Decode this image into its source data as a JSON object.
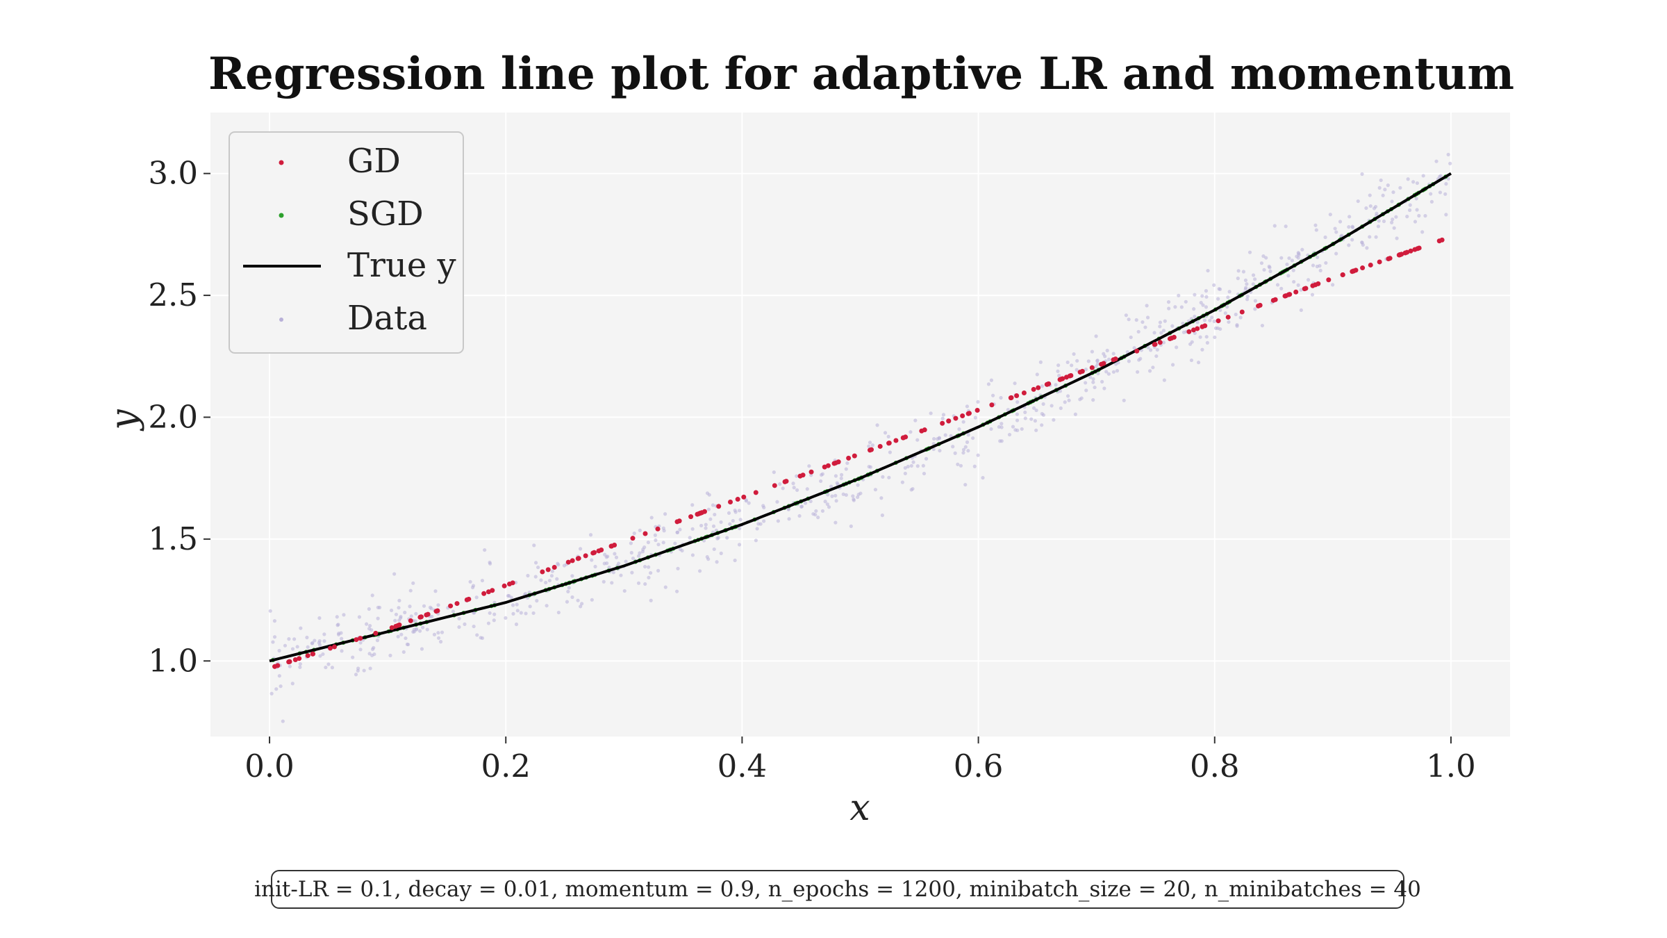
{
  "chart_data": {
    "type": "scatter",
    "title": "Regression line plot for adaptive LR and momentum",
    "xlabel": "x",
    "ylabel": "y",
    "xlim": [
      -0.05,
      1.05
    ],
    "ylim": [
      0.69,
      3.25
    ],
    "xticks": [
      "0.0",
      "0.2",
      "0.4",
      "0.6",
      "0.8",
      "1.0"
    ],
    "yticks": [
      "1.0",
      "1.5",
      "2.0",
      "2.5",
      "3.0"
    ],
    "grid": true,
    "legend_position": "top-left",
    "legend": [
      "GD",
      "SGD",
      "True y",
      "Data"
    ],
    "colors": {
      "gd": "#d01c3c",
      "sgd": "#2ca02c",
      "true_y": "#000000",
      "data": "#b8b0d8",
      "plot_bg": "#f4f4f4",
      "grid": "#ffffff"
    },
    "series": [
      {
        "name": "GD",
        "kind": "scatter",
        "x": [
          0.0,
          0.1,
          0.2,
          0.3,
          0.4,
          0.5,
          0.6,
          0.7,
          0.8,
          0.9,
          1.0
        ],
        "y": [
          0.97,
          1.13,
          1.31,
          1.49,
          1.67,
          1.85,
          2.03,
          2.21,
          2.39,
          2.57,
          2.74
        ]
      },
      {
        "name": "SGD",
        "kind": "scatter",
        "x": [
          0.0,
          0.1,
          0.2,
          0.3,
          0.4,
          0.5,
          0.6,
          0.7,
          0.8,
          0.9,
          1.0
        ],
        "y": [
          1.0,
          1.12,
          1.24,
          1.39,
          1.56,
          1.75,
          1.96,
          2.19,
          2.44,
          2.71,
          3.0
        ]
      },
      {
        "name": "True y",
        "kind": "line",
        "x": [
          0.0,
          0.1,
          0.2,
          0.3,
          0.4,
          0.5,
          0.6,
          0.7,
          0.8,
          0.9,
          1.0
        ],
        "y": [
          1.0,
          1.12,
          1.24,
          1.39,
          1.56,
          1.75,
          1.96,
          2.19,
          2.44,
          2.71,
          3.0
        ]
      },
      {
        "name": "Data",
        "kind": "scatter",
        "x": [
          0.0,
          0.1,
          0.2,
          0.3,
          0.4,
          0.5,
          0.6,
          0.7,
          0.8,
          0.9,
          1.0
        ],
        "y": [
          1.0,
          1.12,
          1.24,
          1.39,
          1.56,
          1.75,
          1.96,
          2.19,
          2.44,
          2.71,
          3.0
        ]
      }
    ]
  },
  "params_text": "init-LR = 0.1, decay = 0.01, momentum = 0.9, n_epochs = 1200, minibatch_size = 20, n_minibatches = 40"
}
